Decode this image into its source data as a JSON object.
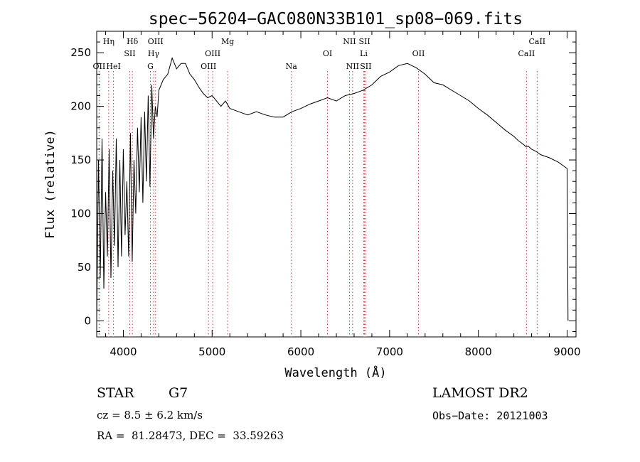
{
  "chart_data": {
    "type": "line",
    "title": "spec−56204−GAC080N33B101_sp08−069.fits",
    "xlabel": "Wavelength (Å)",
    "ylabel": "Flux (relative)",
    "xlim": [
      3700,
      9100
    ],
    "ylim": [
      -15,
      270
    ],
    "x_ticks": [
      4000,
      5000,
      6000,
      7000,
      8000,
      9000
    ],
    "x_tick_labels": [
      "4000",
      "5000",
      "6000",
      "7000",
      "8000",
      "9000"
    ],
    "y_ticks": [
      0,
      50,
      100,
      150,
      200,
      250
    ],
    "y_tick_labels": [
      "0",
      "50",
      "100",
      "150",
      "200",
      "250"
    ],
    "grid": false,
    "series": [
      {
        "x": [
          3700,
          3720,
          3740,
          3760,
          3780,
          3800,
          3820,
          3840,
          3860,
          3880,
          3900,
          3920,
          3940,
          3960,
          3980,
          4000,
          4020,
          4040,
          4060,
          4080,
          4100,
          4120,
          4140,
          4160,
          4180,
          4200,
          4220,
          4240,
          4260,
          4280,
          4300,
          4320,
          4340,
          4360,
          4380,
          4400,
          4450,
          4500,
          4550,
          4600,
          4650,
          4700,
          4750,
          4800,
          4850,
          4900,
          4950,
          5000,
          5050,
          5100,
          5150,
          5200,
          5300,
          5400,
          5500,
          5600,
          5700,
          5800,
          5900,
          6000,
          6100,
          6200,
          6300,
          6400,
          6500,
          6600,
          6700,
          6800,
          6900,
          7000,
          7100,
          7200,
          7300,
          7400,
          7500,
          7600,
          7700,
          7800,
          7900,
          8000,
          8100,
          8200,
          8300,
          8400,
          8450,
          8500,
          8540,
          8560,
          8600,
          8650,
          8700,
          8800,
          8900,
          8950,
          9000,
          9010
        ],
        "y": [
          0,
          150,
          40,
          170,
          30,
          120,
          60,
          160,
          40,
          140,
          70,
          170,
          50,
          150,
          60,
          160,
          80,
          130,
          60,
          175,
          55,
          150,
          100,
          180,
          120,
          190,
          110,
          195,
          130,
          210,
          125,
          220,
          170,
          200,
          190,
          215,
          225,
          230,
          245,
          235,
          240,
          240,
          230,
          225,
          218,
          212,
          208,
          210,
          205,
          200,
          205,
          198,
          195,
          192,
          195,
          192,
          190,
          190,
          195,
          198,
          202,
          205,
          208,
          205,
          210,
          212,
          215,
          220,
          228,
          232,
          238,
          240,
          236,
          230,
          222,
          220,
          215,
          210,
          205,
          198,
          192,
          185,
          178,
          172,
          168,
          165,
          162,
          163,
          160,
          158,
          155,
          152,
          148,
          145,
          142,
          0
        ]
      }
    ],
    "line_markers": [
      {
        "label": "OII",
        "x": 3727,
        "row": 3
      },
      {
        "label": "Hη",
        "x": 3835,
        "row": 1
      },
      {
        "label": "HeI",
        "x": 3889,
        "row": 3
      },
      {
        "label": "Hδ",
        "x": 4102,
        "row": 1
      },
      {
        "label": "SII",
        "x": 4072,
        "row": 2
      },
      {
        "label": "OIII",
        "x": 4363,
        "row": 1
      },
      {
        "label": "Hγ",
        "x": 4341,
        "row": 2
      },
      {
        "label": "G",
        "x": 4305,
        "row": 3
      },
      {
        "label": "Mg",
        "x": 5175,
        "row": 1
      },
      {
        "label": "OIII",
        "x": 5007,
        "row": 2
      },
      {
        "label": "OIII",
        "x": 4959,
        "row": 3
      },
      {
        "label": "Na",
        "x": 5893,
        "row": 3
      },
      {
        "label": "OI",
        "x": 6300,
        "row": 2
      },
      {
        "label": "NII",
        "x": 6548,
        "row": 1
      },
      {
        "label": "SII",
        "x": 6717,
        "row": 1
      },
      {
        "label": "Li",
        "x": 6708,
        "row": 2
      },
      {
        "label": "NII",
        "x": 6583,
        "row": 3
      },
      {
        "label": "SII",
        "x": 6731,
        "row": 3
      },
      {
        "label": "OII",
        "x": 7325,
        "row": 2
      },
      {
        "label": "CaII",
        "x": 8662,
        "row": 1
      },
      {
        "label": "CaII",
        "x": 8542,
        "row": 2
      }
    ]
  },
  "info": {
    "object_class": "STAR",
    "subclass": "G7",
    "survey": "LAMOST DR2",
    "cz": "cz = 8.5 ± 6.2 km/s",
    "obs_date": "Obs−Date: 20121003",
    "radec": "RA =  81.28473, DEC =  33.59263"
  },
  "colors": {
    "spectrum": "#000000",
    "marker_line": "#cc3333",
    "axis": "#000000",
    "background": "#ffffff"
  }
}
